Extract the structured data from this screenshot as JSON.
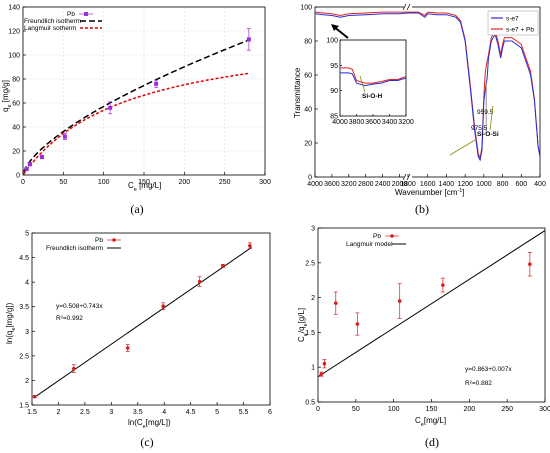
{
  "chart_data": [
    {
      "panel": "(a)",
      "type": "scatter",
      "xlabel": "Ce [mg/L]",
      "xlabel_main": "C",
      "xlabel_sub": "e",
      "xlabel_unit": " [mg/L]",
      "ylabel": "qe [mg/g]",
      "ylabel_main": "q",
      "ylabel_sub": "e",
      "ylabel_unit": " [mg/g]",
      "xlim": [
        0,
        300
      ],
      "ylim": [
        0,
        140
      ],
      "xticks": [
        0,
        50,
        100,
        150,
        200,
        250,
        300
      ],
      "yticks": [
        0,
        20,
        40,
        60,
        80,
        100,
        120,
        140
      ],
      "legend": [
        "Pb",
        "Freundlich isotherm",
        "Langmuir sotherm"
      ],
      "points": [
        {
          "x": 4.5,
          "y": 5,
          "err": 1.5
        },
        {
          "x": 8.5,
          "y": 9,
          "err": 1.5
        },
        {
          "x": 23.5,
          "y": 15,
          "err": 1.5
        },
        {
          "x": 52,
          "y": 32,
          "err": 2.5
        },
        {
          "x": 108,
          "y": 56,
          "err": 5
        },
        {
          "x": 165,
          "y": 76,
          "err": 3
        },
        {
          "x": 280,
          "y": 113,
          "err": 9
        }
      ],
      "freundlich": {
        "K": 2.76,
        "n_inv": 0.658
      },
      "langmuir": {
        "qmax": 124,
        "KL": 0.0077
      },
      "colors": {
        "points": "#9b30d9",
        "freundlich": "#000000",
        "langmuir": "#e00000"
      }
    },
    {
      "panel": "(b)",
      "type": "line",
      "xlabel": "Wavenumber [cm",
      "xlabel_sup": "-1",
      "xlabel_end": "]",
      "ylabel": "Transmittance",
      "ylim": [
        0,
        100
      ],
      "xticks": [
        4000,
        3600,
        3200,
        2800,
        2400,
        2000,
        1800,
        1600,
        1400,
        1200,
        1000,
        800,
        600,
        400
      ],
      "yticks": [
        0,
        20,
        40,
        60,
        80,
        100
      ],
      "legend": [
        "s-e7",
        "s-e7 + Pb"
      ],
      "colors": {
        "se7": "#2c2cd6",
        "se7pb": "#e02424"
      },
      "series_se7": [
        [
          4000,
          96
        ],
        [
          3800,
          95.5
        ],
        [
          3600,
          95
        ],
        [
          3400,
          94
        ],
        [
          3200,
          95
        ],
        [
          2800,
          95.5
        ],
        [
          2400,
          96
        ],
        [
          2000,
          96
        ],
        [
          1800,
          96.5
        ],
        [
          1700,
          96.5
        ],
        [
          1630,
          94
        ],
        [
          1600,
          96
        ],
        [
          1500,
          95.5
        ],
        [
          1400,
          95.5
        ],
        [
          1300,
          94
        ],
        [
          1250,
          91
        ],
        [
          1200,
          80
        ],
        [
          1150,
          55
        ],
        [
          1100,
          28
        ],
        [
          1060,
          12
        ],
        [
          1040,
          10
        ],
        [
          1020,
          16
        ],
        [
          1000,
          45
        ],
        [
          975,
          55
        ],
        [
          965,
          58
        ],
        [
          950,
          70
        ],
        [
          920,
          80
        ],
        [
          880,
          84
        ],
        [
          850,
          78
        ],
        [
          820,
          70
        ],
        [
          800,
          76
        ],
        [
          780,
          80
        ],
        [
          700,
          80
        ],
        [
          600,
          76
        ],
        [
          500,
          60
        ],
        [
          460,
          45
        ],
        [
          420,
          18
        ],
        [
          400,
          12
        ]
      ],
      "series_se7pb": [
        [
          4000,
          97
        ],
        [
          3800,
          96.5
        ],
        [
          3600,
          96
        ],
        [
          3400,
          95
        ],
        [
          3200,
          96
        ],
        [
          2800,
          96.5
        ],
        [
          2400,
          97
        ],
        [
          2000,
          97
        ],
        [
          1800,
          97
        ],
        [
          1700,
          97
        ],
        [
          1630,
          95
        ],
        [
          1600,
          97
        ],
        [
          1500,
          96.5
        ],
        [
          1400,
          96.5
        ],
        [
          1300,
          95
        ],
        [
          1250,
          92
        ],
        [
          1200,
          81
        ],
        [
          1150,
          57
        ],
        [
          1100,
          30
        ],
        [
          1060,
          14
        ],
        [
          1040,
          11
        ],
        [
          1020,
          18
        ],
        [
          1000,
          48
        ],
        [
          985,
          62
        ],
        [
          965,
          68
        ],
        [
          950,
          72
        ],
        [
          920,
          82
        ],
        [
          880,
          86
        ],
        [
          850,
          80
        ],
        [
          820,
          72
        ],
        [
          800,
          78
        ],
        [
          780,
          82
        ],
        [
          700,
          82
        ],
        [
          600,
          78
        ],
        [
          500,
          62
        ],
        [
          460,
          46
        ],
        [
          420,
          18
        ],
        [
          400,
          12
        ]
      ],
      "inset": {
        "xticks": [
          4000,
          3800,
          3600,
          3400,
          3200
        ],
        "yticks": [
          85,
          90,
          95,
          100
        ],
        "ylim": [
          85,
          100
        ],
        "se7": [
          [
            4000,
            93.5
          ],
          [
            3900,
            93.5
          ],
          [
            3850,
            93.3
          ],
          [
            3800,
            91.5
          ],
          [
            3700,
            91
          ],
          [
            3600,
            91.3
          ],
          [
            3500,
            91.5
          ],
          [
            3400,
            92
          ],
          [
            3300,
            92
          ],
          [
            3200,
            92.5
          ]
        ],
        "se7pb": [
          [
            4000,
            94.5
          ],
          [
            3900,
            94.5
          ],
          [
            3850,
            94.2
          ],
          [
            3800,
            92
          ],
          [
            3700,
            91.5
          ],
          [
            3600,
            91.5
          ],
          [
            3500,
            91.8
          ],
          [
            3400,
            92.2
          ],
          [
            3300,
            92.2
          ],
          [
            3200,
            92.8
          ]
        ]
      },
      "annotations": {
        "sioh": "Si-O-H",
        "siosi": "Si-O-Si",
        "p1": "975.5",
        "p2": "959.5"
      }
    },
    {
      "panel": "(c)",
      "type": "scatter",
      "xlabel": "ln(Ce[mg/L])",
      "xlabel_main": "ln(C",
      "xlabel_sub": "e",
      "xlabel_unit": "[mg/L])",
      "ylabel": "ln(qe[mg/g])",
      "ylabel_main": "ln(q",
      "ylabel_sub": "e",
      "ylabel_unit": "[mg/g])",
      "xlim": [
        1.5,
        6
      ],
      "ylim": [
        1.5,
        5
      ],
      "xticks": [
        1.5,
        2,
        2.5,
        3,
        3.5,
        4,
        4.5,
        5,
        5.5,
        6
      ],
      "yticks": [
        1.5,
        2,
        2.5,
        3,
        3.5,
        4,
        4.5,
        5
      ],
      "legend": [
        "Pb",
        "Freundlich isotherm"
      ],
      "points": [
        {
          "x": 1.55,
          "y": 1.67,
          "err": 0.02
        },
        {
          "x": 2.29,
          "y": 2.24,
          "err": 0.08
        },
        {
          "x": 3.31,
          "y": 2.66,
          "err": 0.07
        },
        {
          "x": 3.98,
          "y": 3.51,
          "err": 0.07
        },
        {
          "x": 4.67,
          "y": 4.01,
          "err": 0.1
        },
        {
          "x": 5.11,
          "y": 4.33,
          "err": 0.03
        },
        {
          "x": 5.62,
          "y": 4.74,
          "err": 0.06
        }
      ],
      "fit": {
        "a": 0.508,
        "b": 0.743
      },
      "equation": "y=0.508+0.743x",
      "r2": "R²=0.992",
      "colors": {
        "points": "#d62020",
        "fit": "#000000"
      }
    },
    {
      "panel": "(d)",
      "type": "scatter",
      "xlabel": "Ce[mg/L]",
      "xlabel_main": "C",
      "xlabel_sub": "e",
      "xlabel_unit": "[mg/L]",
      "ylabel": "Ce/qe[g/L]",
      "ylabel_main": "C",
      "ylabel_sub": "e",
      "ylabel_mid": "/q",
      "ylabel_sub2": "e",
      "ylabel_unit": "[g/L]",
      "xlim": [
        0,
        300
      ],
      "ylim": [
        0.5,
        3
      ],
      "xticks": [
        0,
        50,
        100,
        150,
        200,
        250,
        300
      ],
      "yticks": [
        0.5,
        1,
        1.5,
        2,
        2.5,
        3
      ],
      "legend": [
        "Pb",
        "Langmuir model"
      ],
      "points": [
        {
          "x": 4.5,
          "y": 0.9,
          "err": 0.03
        },
        {
          "x": 8.5,
          "y": 1.05,
          "err": 0.06
        },
        {
          "x": 23.5,
          "y": 1.92,
          "err": 0.16
        },
        {
          "x": 52,
          "y": 1.62,
          "err": 0.16
        },
        {
          "x": 108,
          "y": 1.95,
          "err": 0.25
        },
        {
          "x": 165,
          "y": 2.18,
          "err": 0.1
        },
        {
          "x": 280,
          "y": 2.48,
          "err": 0.17
        }
      ],
      "fit": {
        "a": 0.863,
        "b": 0.007
      },
      "equation": "y=0.863+0.007x",
      "r2": "R²=0.882",
      "colors": {
        "points": "#d62020",
        "fit": "#000000"
      }
    }
  ]
}
